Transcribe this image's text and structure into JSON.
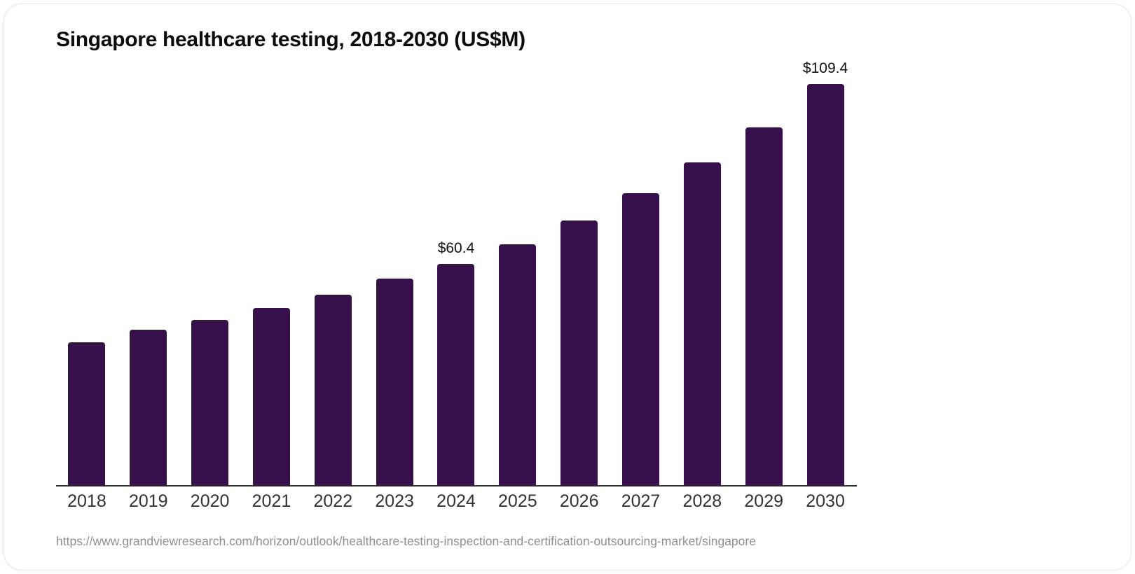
{
  "chart_data": {
    "type": "bar",
    "title": "Singapore healthcare testing, 2018-2030 (US$M)",
    "categories": [
      "2018",
      "2019",
      "2020",
      "2021",
      "2022",
      "2023",
      "2024",
      "2025",
      "2026",
      "2027",
      "2028",
      "2029",
      "2030"
    ],
    "values": [
      38.9,
      42.3,
      45.0,
      48.4,
      51.9,
      56.4,
      60.4,
      65.7,
      72.2,
      79.6,
      88.0,
      97.6,
      109.4
    ],
    "point_labels": [
      "",
      "",
      "",
      "",
      "",
      "",
      "$60.4",
      "",
      "",
      "",
      "",
      "",
      "$109.4"
    ],
    "xlabel": "",
    "ylabel": "",
    "ylim": [
      0,
      110
    ],
    "grid": false,
    "legend": false,
    "bar_color": "#36104A",
    "axis_color": "#2d2d2d"
  },
  "source": {
    "url": "https://www.grandviewresearch.com/horizon/outlook/healthcare-testing-inspection-and-certification-outsourcing-market/singapore"
  }
}
